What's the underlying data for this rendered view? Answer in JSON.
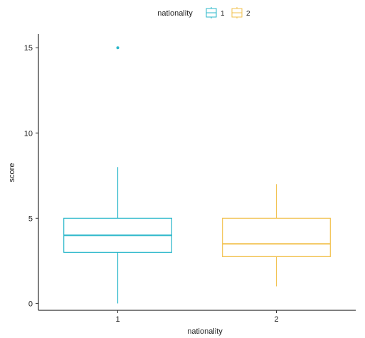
{
  "chart_data": {
    "type": "boxplot",
    "xlabel": "nationality",
    "ylabel": "score",
    "ylim": [
      -0.4,
      15.8
    ],
    "yticks": [
      0,
      5,
      10,
      15
    ],
    "grid": false,
    "legend": {
      "title": "nationality",
      "position": "top",
      "entries": [
        "1",
        "2"
      ]
    },
    "categories": [
      "1",
      "2"
    ],
    "boxes": [
      {
        "category": "1",
        "color": "#2ab7ca",
        "min": 0,
        "q1": 3,
        "median": 4,
        "q3": 5,
        "max": 8,
        "outliers": [
          15
        ]
      },
      {
        "category": "2",
        "color": "#f2c14e",
        "min": 1,
        "q1": 2.75,
        "median": 3.5,
        "q3": 5,
        "max": 7,
        "outliers": []
      }
    ]
  }
}
